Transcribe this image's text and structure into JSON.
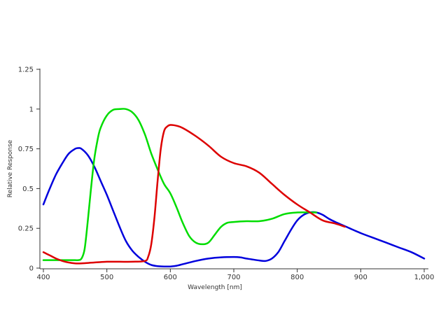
{
  "chart_data": {
    "type": "line",
    "title": "",
    "xlabel": "Wavelength [nm]",
    "ylabel": "Relative Response",
    "xlim": [
      400,
      1000
    ],
    "ylim": [
      0,
      1.25
    ],
    "xticks": [
      400,
      500,
      600,
      700,
      800,
      900,
      1000
    ],
    "xtick_labels": [
      "400",
      "500",
      "600",
      "700",
      "800",
      "900",
      "1,000"
    ],
    "yticks": [
      0,
      0.25,
      0.5,
      0.75,
      1,
      1.25
    ],
    "ytick_labels": [
      "0",
      "0.25",
      "0.5",
      "0.75",
      "1",
      "1.25"
    ],
    "grid": false,
    "legend": "none",
    "series": [
      {
        "color": "#0000dd",
        "x": [
          400,
          410,
          420,
          430,
          440,
          450,
          455,
          460,
          470,
          480,
          490,
          500,
          510,
          520,
          530,
          540,
          550,
          560,
          570,
          580,
          590,
          600,
          610,
          620,
          640,
          660,
          680,
          700,
          710,
          720,
          740,
          750,
          760,
          770,
          780,
          790,
          800,
          810,
          820,
          830,
          840,
          850,
          860,
          880,
          900,
          920,
          940,
          960,
          980,
          1000
        ],
        "y": [
          0.4,
          0.5,
          0.59,
          0.66,
          0.72,
          0.75,
          0.755,
          0.75,
          0.71,
          0.64,
          0.55,
          0.46,
          0.36,
          0.26,
          0.17,
          0.11,
          0.07,
          0.04,
          0.02,
          0.012,
          0.01,
          0.01,
          0.015,
          0.025,
          0.045,
          0.06,
          0.068,
          0.07,
          0.068,
          0.06,
          0.048,
          0.045,
          0.06,
          0.1,
          0.17,
          0.24,
          0.3,
          0.335,
          0.35,
          0.35,
          0.335,
          0.31,
          0.29,
          0.255,
          0.22,
          0.19,
          0.16,
          0.13,
          0.1,
          0.06
        ]
      },
      {
        "color": "#00dd00",
        "x": [
          400,
          410,
          420,
          430,
          440,
          450,
          455,
          460,
          465,
          470,
          475,
          480,
          485,
          490,
          500,
          510,
          520,
          530,
          540,
          550,
          560,
          570,
          580,
          590,
          600,
          610,
          620,
          630,
          640,
          650,
          660,
          670,
          680,
          690,
          700,
          720,
          740,
          760,
          780,
          800,
          820,
          830
        ],
        "y": [
          0.05,
          0.05,
          0.05,
          0.05,
          0.05,
          0.05,
          0.05,
          0.06,
          0.12,
          0.3,
          0.5,
          0.68,
          0.8,
          0.88,
          0.96,
          0.995,
          1.0,
          1.0,
          0.98,
          0.93,
          0.84,
          0.72,
          0.62,
          0.53,
          0.47,
          0.38,
          0.28,
          0.2,
          0.16,
          0.15,
          0.16,
          0.21,
          0.26,
          0.285,
          0.29,
          0.295,
          0.295,
          0.31,
          0.34,
          0.35,
          0.35,
          0.35
        ]
      },
      {
        "color": "#dd0000",
        "x": [
          400,
          410,
          420,
          430,
          440,
          450,
          460,
          480,
          500,
          520,
          540,
          560,
          565,
          570,
          575,
          580,
          585,
          590,
          595,
          600,
          610,
          620,
          640,
          660,
          680,
          700,
          720,
          740,
          760,
          780,
          800,
          820,
          840,
          860,
          875
        ],
        "y": [
          0.1,
          0.08,
          0.06,
          0.045,
          0.035,
          0.03,
          0.03,
          0.035,
          0.04,
          0.04,
          0.04,
          0.045,
          0.07,
          0.15,
          0.32,
          0.55,
          0.75,
          0.86,
          0.89,
          0.9,
          0.895,
          0.88,
          0.83,
          0.77,
          0.7,
          0.66,
          0.64,
          0.6,
          0.53,
          0.46,
          0.4,
          0.35,
          0.3,
          0.28,
          0.26
        ]
      }
    ]
  }
}
